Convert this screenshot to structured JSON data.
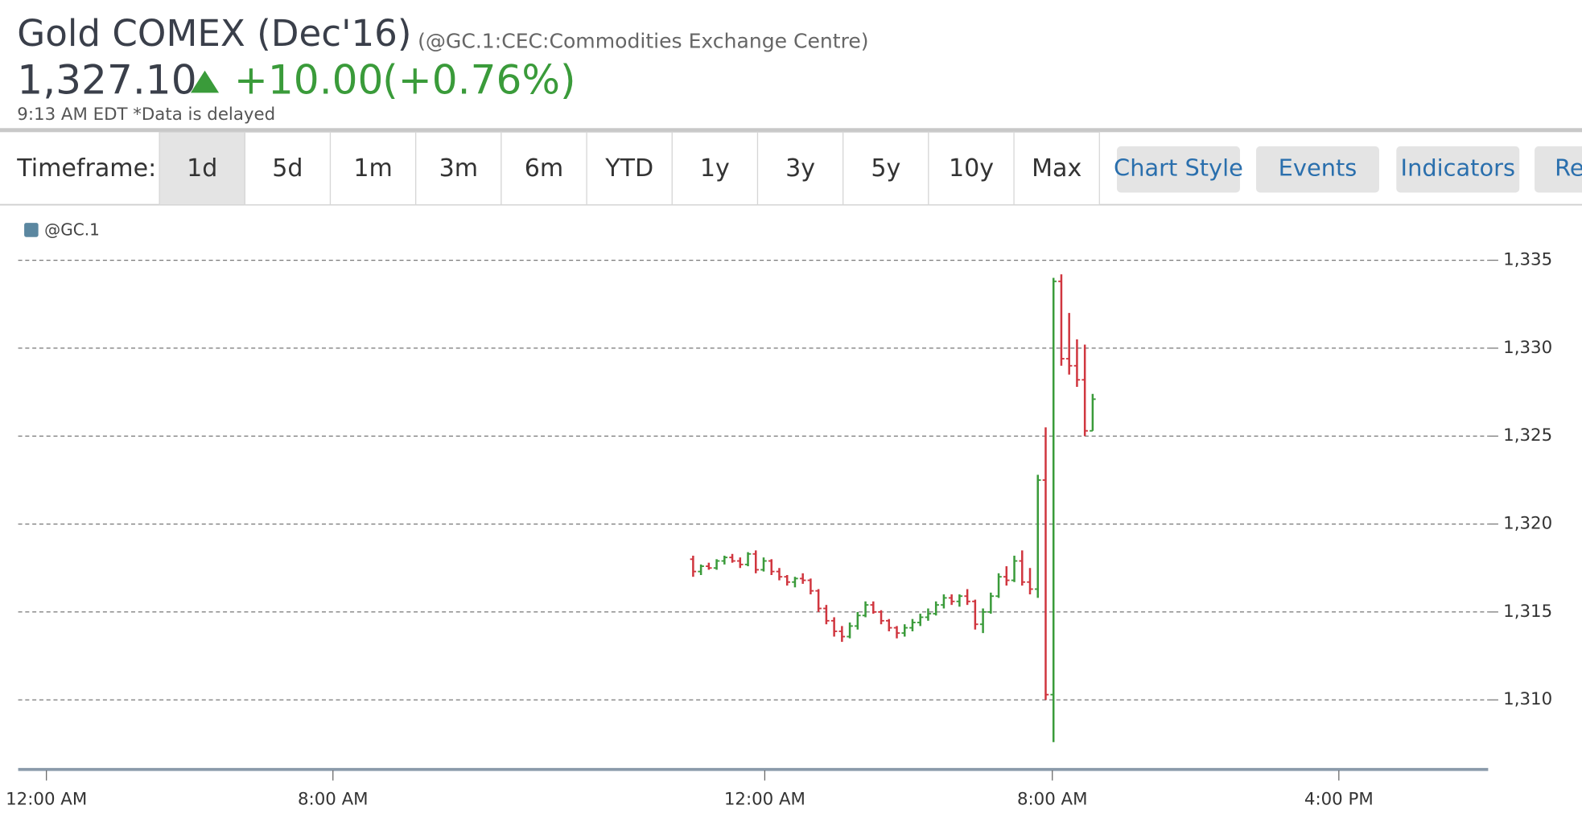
{
  "header": {
    "title": "Gold COMEX (Dec'16)",
    "subtitle": "(@GC.1:CEC:Commodities Exchange Centre)",
    "price": "1,327.10",
    "change": "+10.00",
    "change_pct": "(+0.76%)",
    "timestamp": "9:13 AM EDT *Data is delayed"
  },
  "toolbar": {
    "label": "Timeframe:",
    "timeframes": [
      "1d",
      "5d",
      "1m",
      "3m",
      "6m",
      "YTD",
      "1y",
      "3y",
      "5y",
      "10y",
      "Max"
    ],
    "buttons": [
      "Chart Style",
      "Events",
      "Indicators",
      "Re"
    ]
  },
  "chart_data": {
    "type": "ohlc",
    "legend": "@GC.1",
    "legend_color": "#5b87a0",
    "up_color": "#3a9b3a",
    "down_color": "#d0363f",
    "grid": true,
    "ylim": [
      1306,
      1336
    ],
    "yticks": [
      {
        "value": 1310,
        "label": "1,310"
      },
      {
        "value": 1315,
        "label": "1,315"
      },
      {
        "value": 1320,
        "label": "1,320"
      },
      {
        "value": 1325,
        "label": "1,325"
      },
      {
        "value": 1330,
        "label": "1,330"
      },
      {
        "value": 1335,
        "label": "1,335"
      }
    ],
    "xtick_labels": [
      "12:00 AM",
      "8:00 AM",
      "12:00 AM",
      "8:00 AM",
      "4:00 PM"
    ],
    "open": [
      1318.0,
      1317.3,
      1317.6,
      1317.5,
      1317.9,
      1318.1,
      1317.9,
      1317.7,
      1318.3,
      1317.4,
      1317.9,
      1317.3,
      1317.0,
      1316.7,
      1316.9,
      1316.8,
      1316.2,
      1315.2,
      1314.5,
      1313.9,
      1313.6,
      1314.2,
      1314.8,
      1315.4,
      1315.0,
      1314.5,
      1314.1,
      1313.8,
      1314.1,
      1314.4,
      1314.7,
      1314.9,
      1315.4,
      1315.8,
      1315.6,
      1315.9,
      1315.6,
      1314.3,
      1315.0,
      1315.9,
      1317.0,
      1316.8,
      1317.9,
      1316.7,
      1316.3,
      1322.5,
      1310.3,
      1333.8,
      1329.4,
      1329.0,
      1328.2,
      1325.3
    ],
    "high": [
      1318.2,
      1317.7,
      1317.8,
      1318.0,
      1318.2,
      1318.3,
      1318.1,
      1318.4,
      1318.5,
      1318.1,
      1318.0,
      1317.5,
      1317.1,
      1317.0,
      1317.2,
      1316.9,
      1316.3,
      1315.4,
      1314.7,
      1314.2,
      1314.4,
      1315.0,
      1315.6,
      1315.6,
      1315.1,
      1314.6,
      1314.2,
      1314.3,
      1314.6,
      1314.9,
      1315.2,
      1315.6,
      1316.0,
      1316.0,
      1316.0,
      1316.3,
      1315.7,
      1315.2,
      1316.1,
      1317.2,
      1317.6,
      1318.2,
      1318.5,
      1317.5,
      1322.8,
      1325.5,
      1334.0,
      1334.2,
      1332.0,
      1330.5,
      1330.2,
      1327.4
    ],
    "low": [
      1317.0,
      1317.1,
      1317.4,
      1317.4,
      1317.7,
      1317.8,
      1317.5,
      1317.6,
      1317.2,
      1317.3,
      1317.1,
      1316.8,
      1316.5,
      1316.4,
      1316.6,
      1316.0,
      1315.0,
      1314.3,
      1313.6,
      1313.3,
      1313.5,
      1314.0,
      1314.7,
      1314.9,
      1314.3,
      1313.9,
      1313.5,
      1313.6,
      1313.9,
      1314.2,
      1314.5,
      1314.8,
      1315.2,
      1315.4,
      1315.3,
      1315.4,
      1314.0,
      1313.8,
      1314.9,
      1315.8,
      1316.5,
      1316.7,
      1316.5,
      1316.0,
      1315.8,
      1310.0,
      1307.6,
      1329.0,
      1328.5,
      1327.8,
      1325.0,
      1325.3
    ],
    "close": [
      1317.3,
      1317.6,
      1317.5,
      1317.9,
      1318.1,
      1317.9,
      1317.7,
      1318.3,
      1317.4,
      1317.9,
      1317.3,
      1317.0,
      1316.7,
      1316.9,
      1316.8,
      1316.2,
      1315.2,
      1314.5,
      1313.9,
      1313.6,
      1314.2,
      1314.8,
      1315.4,
      1315.0,
      1314.5,
      1314.1,
      1313.8,
      1314.1,
      1314.4,
      1314.7,
      1314.9,
      1315.4,
      1315.8,
      1315.6,
      1315.9,
      1315.6,
      1314.3,
      1315.0,
      1315.9,
      1317.0,
      1316.8,
      1317.9,
      1316.7,
      1316.3,
      1322.5,
      1310.3,
      1333.8,
      1329.4,
      1329.0,
      1328.2,
      1325.3,
      1327.1
    ]
  }
}
